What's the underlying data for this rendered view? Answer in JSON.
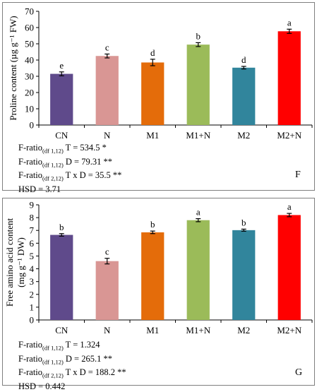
{
  "chart_data": [
    {
      "type": "bar",
      "panel_label": "F",
      "ylabel": "Proline content (µg g⁻¹ FW)",
      "ylim": [
        0,
        70
      ],
      "yticks": [
        0,
        10,
        20,
        30,
        40,
        50,
        60,
        70
      ],
      "grid": false,
      "categories": [
        "CN",
        "N",
        "M1",
        "M1+N",
        "M2",
        "M2+N"
      ],
      "values": [
        31.5,
        42.5,
        38.5,
        49.5,
        35.3,
        57.7
      ],
      "errors": [
        1.2,
        1.2,
        2.0,
        1.2,
        0.8,
        1.3
      ],
      "letters": [
        "e",
        "c",
        "d",
        "b",
        "d",
        "a"
      ],
      "colors": [
        "#5f4a8b",
        "#d99694",
        "#e46c0a",
        "#9bbb59",
        "#31859c",
        "#ff0000"
      ],
      "stats": [
        {
          "prefix": "F-ratio",
          "sub": "(df 1,12)",
          "text": " T = 534.5 *"
        },
        {
          "prefix": "F-ratio",
          "sub": "(df 1,12)",
          "text": " D = 79.31 **"
        },
        {
          "prefix": "F-ratio",
          "sub": "(df 2,12)",
          "text": " T x D = 35.5 **"
        },
        {
          "prefix": "",
          "sub": "",
          "text": "HSD = 3.71"
        }
      ]
    },
    {
      "type": "bar",
      "panel_label": "G",
      "ylabel_line1": "Free amino acid content",
      "ylabel_line2": "(mg g⁻¹ DW)",
      "ylim": [
        0,
        9
      ],
      "yticks": [
        0,
        1,
        2,
        3,
        4,
        5,
        6,
        7,
        8,
        9
      ],
      "grid": false,
      "categories": [
        "CN",
        "N",
        "M1",
        "M1+N",
        "M2",
        "M2+N"
      ],
      "values": [
        6.65,
        4.6,
        6.85,
        7.8,
        7.02,
        8.2
      ],
      "errors": [
        0.1,
        0.22,
        0.1,
        0.12,
        0.08,
        0.13
      ],
      "letters": [
        "b",
        "c",
        "b",
        "a",
        "b",
        "a"
      ],
      "colors": [
        "#5f4a8b",
        "#d99694",
        "#e46c0a",
        "#9bbb59",
        "#31859c",
        "#ff0000"
      ],
      "stats": [
        {
          "prefix": "F-ratio",
          "sub": "(df 1,12)",
          "text": " T = 1.324"
        },
        {
          "prefix": "F-ratio",
          "sub": "(df 1,12)",
          "text": " D = 265.1 **"
        },
        {
          "prefix": "F-ratio",
          "sub": "(df 2,12)",
          "text": " T x D = 188.2 **"
        },
        {
          "prefix": "",
          "sub": "",
          "text": "HSD = 0.442"
        }
      ]
    }
  ]
}
